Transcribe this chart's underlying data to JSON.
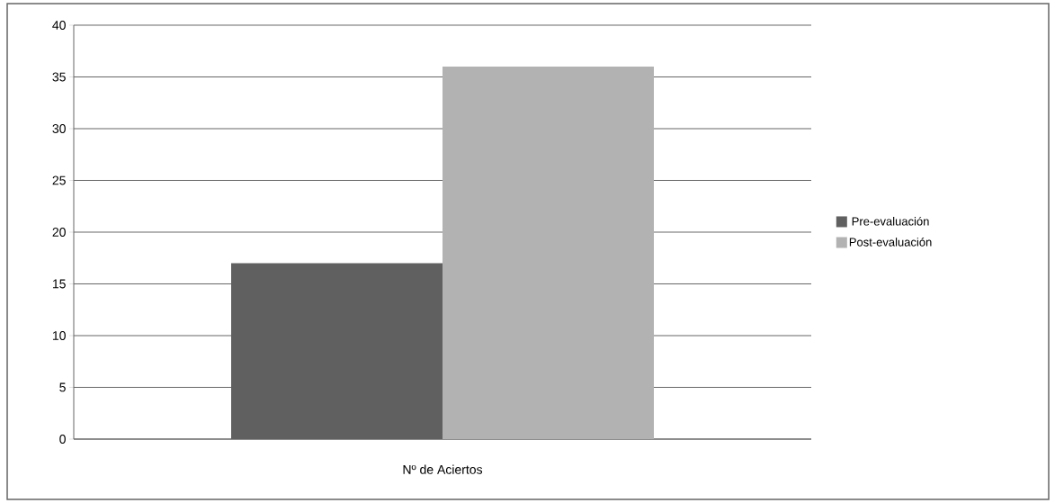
{
  "chart_data": {
    "type": "bar",
    "categories": [
      "Nº de Aciertos"
    ],
    "series": [
      {
        "name": "Pre-evaluación",
        "color": "#606060",
        "values": [
          17
        ]
      },
      {
        "name": "Post-evaluación",
        "color": "#b2b2b2",
        "values": [
          36
        ]
      }
    ],
    "ylim": [
      0,
      40
    ],
    "yticks": [
      0,
      5,
      10,
      15,
      20,
      25,
      30,
      35,
      40
    ],
    "grid": "y",
    "legend": "right"
  }
}
